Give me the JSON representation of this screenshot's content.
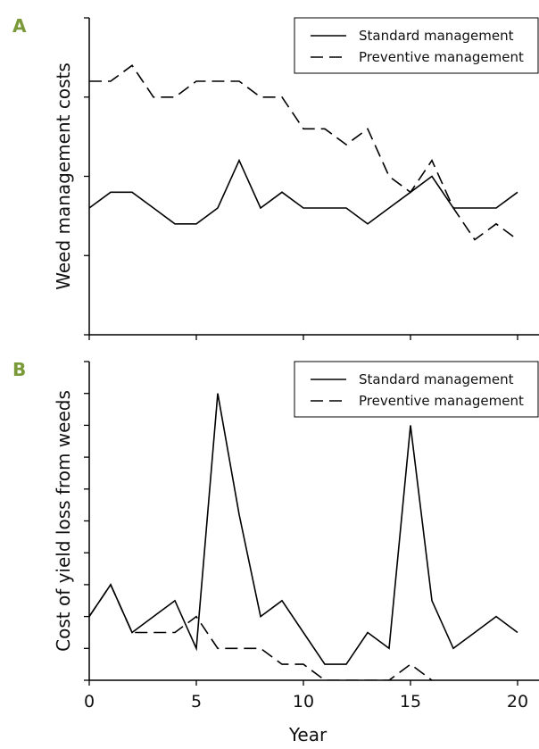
{
  "chart_data": [
    {
      "type": "line",
      "panel_label": "A",
      "ylabel": "Weed management costs",
      "x": [
        0,
        1,
        2,
        3,
        4,
        5,
        6,
        7,
        8,
        9,
        10,
        11,
        12,
        13,
        14,
        15,
        16,
        17,
        18,
        19,
        20
      ],
      "series": [
        {
          "name": "Standard management",
          "color": "#000000",
          "dashed": false,
          "values": [
            1.6,
            1.8,
            1.8,
            1.6,
            1.4,
            1.4,
            1.6,
            2.2,
            1.6,
            1.8,
            1.6,
            1.6,
            1.6,
            1.4,
            1.6,
            1.8,
            2.0,
            1.6,
            1.6,
            1.6,
            1.8
          ]
        },
        {
          "name": "Preventive management",
          "color": "#000000",
          "dashed": true,
          "values": [
            3.2,
            3.2,
            3.4,
            3.0,
            3.0,
            3.2,
            3.2,
            3.2,
            3.0,
            3.0,
            2.6,
            2.6,
            2.4,
            2.6,
            2.0,
            1.8,
            2.2,
            1.6,
            1.2,
            1.4,
            1.2
          ]
        }
      ],
      "xlim": [
        0,
        21
      ],
      "ylim": [
        0,
        4
      ],
      "xticks": [
        0,
        5,
        10,
        15,
        20
      ],
      "yticks": [
        0,
        1,
        2,
        3,
        4
      ],
      "show_xtick_labels": false,
      "legend": "upper right"
    },
    {
      "type": "line",
      "panel_label": "B",
      "ylabel": "Cost of yield loss from weeds",
      "xlabel": "Year",
      "x": [
        0,
        1,
        2,
        3,
        4,
        5,
        6,
        7,
        8,
        9,
        10,
        11,
        12,
        13,
        14,
        15,
        16,
        17,
        18,
        19,
        20
      ],
      "series": [
        {
          "name": "Standard management",
          "color": "#000000",
          "dashed": false,
          "values": [
            2.0,
            3.0,
            1.5,
            2.0,
            2.5,
            1.0,
            9.0,
            5.2,
            2.0,
            2.5,
            1.5,
            0.5,
            0.5,
            1.5,
            1.0,
            8.0,
            2.5,
            1.0,
            1.5,
            2.0,
            1.5
          ]
        },
        {
          "name": "Preventive management",
          "color": "#000000",
          "dashed": true,
          "values": [
            2.0,
            3.0,
            1.5,
            1.5,
            1.5,
            2.0,
            1.0,
            1.0,
            1.0,
            0.5,
            0.5,
            0,
            0,
            0,
            0,
            0.5,
            0,
            null,
            null,
            null,
            null
          ]
        }
      ],
      "xlim": [
        0,
        21
      ],
      "ylim": [
        0,
        10
      ],
      "xticks": [
        0,
        5,
        10,
        15,
        20
      ],
      "yticks": [
        0,
        1,
        2,
        3,
        4,
        5,
        6,
        7,
        8,
        9,
        10
      ],
      "show_xtick_labels": true,
      "legend": "upper right"
    }
  ]
}
